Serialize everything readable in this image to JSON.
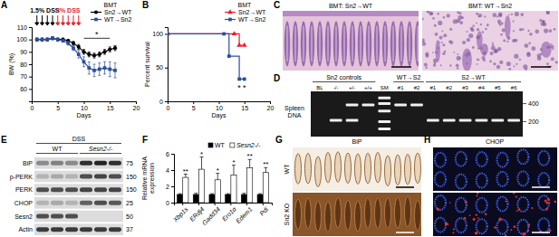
{
  "chart_data": [
    {
      "panel_label": "A",
      "type": "line",
      "x_label": "Days",
      "y_label": "BW (%)",
      "xlim": [
        0,
        20
      ],
      "xticks": [
        0,
        5,
        10,
        15,
        20
      ],
      "ylim": [
        50,
        110
      ],
      "yticks": [
        60,
        70,
        80,
        90,
        100,
        110
      ],
      "legend_title": "BMT",
      "legend": "upper right",
      "x": [
        1,
        2,
        3,
        4,
        5,
        6,
        7,
        8,
        9,
        10,
        11,
        12,
        13,
        14,
        15,
        16
      ],
      "series": [
        {
          "name": "Sn2→WT",
          "color": "#000000",
          "marker": "circle",
          "values": [
            100,
            100,
            100,
            101,
            100,
            100,
            99,
            97,
            94,
            90,
            88,
            87,
            88,
            90,
            92,
            93
          ],
          "errors": [
            1,
            1,
            1,
            1,
            1,
            1,
            1,
            1.5,
            2,
            2,
            2,
            2,
            2,
            2,
            2,
            2
          ]
        },
        {
          "name": "WT→Sn2",
          "color": "#2b4fa0",
          "marker": "square",
          "values": [
            100,
            100,
            100,
            101,
            100,
            99,
            97,
            93,
            88,
            82,
            77,
            75,
            76,
            77,
            76,
            75
          ],
          "errors": [
            1,
            1,
            1,
            1,
            1,
            1,
            1.5,
            2,
            3,
            4,
            5,
            5,
            5,
            5,
            6,
            6
          ]
        }
      ],
      "annotations": [
        {
          "text": "1.5% DSS",
          "x": [
            1,
            2,
            3,
            4
          ],
          "color": "#000000"
        },
        {
          "text": "3% DSS",
          "x": [
            5,
            6,
            7,
            8,
            9
          ],
          "color": "#e8202a"
        },
        {
          "text": "*",
          "x": [
            10,
            15
          ],
          "y": 101
        }
      ]
    },
    {
      "panel_label": "B",
      "type": "line",
      "x_label": "Days",
      "y_label": "Percent survival",
      "xlim": [
        0,
        20
      ],
      "xticks": [
        0,
        5,
        10,
        15,
        20
      ],
      "ylim": [
        0,
        110
      ],
      "yticks": [
        0,
        50,
        100
      ],
      "legend_title": "BMT",
      "legend": "upper right",
      "line_style": "step",
      "series": [
        {
          "name": "Sn2→WT",
          "color": "#e8202a",
          "marker": "triangle",
          "x": [
            0,
            13,
            14,
            15
          ],
          "values": [
            100,
            100,
            83,
            83
          ]
        },
        {
          "name": "WT→Sn2",
          "color": "#2b4fa0",
          "marker": "square",
          "x": [
            0,
            11,
            12,
            14,
            15
          ],
          "values": [
            100,
            100,
            67,
            33,
            33
          ]
        }
      ],
      "annotations": [
        {
          "text": "*",
          "x": 14,
          "y": 20
        },
        {
          "text": "*",
          "x": 15,
          "y": 20
        }
      ]
    },
    {
      "panel_label": "F",
      "type": "bar",
      "y_label": [
        "Relative mRNA",
        "expression"
      ],
      "categories": [
        "Xbp1s",
        "ERdj4",
        "Gadd34",
        "Ero1α",
        "Edem1",
        "Pdi"
      ],
      "ylim": [
        0,
        6
      ],
      "yticks": [
        0,
        2,
        4,
        6
      ],
      "legend": "upper right",
      "series": [
        {
          "name": "WT",
          "color": "#000000",
          "values": [
            1,
            1,
            1,
            1,
            1,
            1
          ],
          "errors": [
            0.1,
            0.15,
            0.1,
            0.1,
            0.15,
            0.1
          ]
        },
        {
          "name": "Sesn2-/-",
          "color": "#ffffff",
          "values": [
            3.1,
            4.1,
            2.8,
            3.4,
            4.3,
            3.7
          ],
          "errors": [
            0.4,
            1.5,
            0.8,
            1.2,
            1.0,
            0.6
          ]
        }
      ],
      "significance": [
        "**",
        "*",
        "*",
        "*",
        "**",
        "**"
      ]
    }
  ],
  "figure": {
    "C": {
      "panel_label": "C",
      "images": [
        "BMT: Sn2→WT",
        "BMT: WT→Sn2"
      ]
    },
    "D": {
      "panel_label": "D",
      "row_label": [
        "Spleen",
        "DNA"
      ],
      "markers": [
        400,
        200
      ],
      "ylim": [
        120,
        600
      ],
      "log": true,
      "groups": [
        {
          "label": "Sn2 controls",
          "lanes": [
            {
              "label": "BL",
              "bands": []
            },
            {
              "label": "-/-",
              "bands": [
                210
              ]
            },
            {
              "label": "+/-",
              "bands": [
                380,
                210
              ]
            },
            {
              "label": "+/+",
              "bands": [
                380
              ]
            }
          ]
        },
        {
          "lanes": [
            {
              "label": "SM",
              "bands": [
                500,
                400,
                300,
                200,
                150
              ]
            }
          ]
        },
        {
          "label": "WT→S2",
          "lanes": [
            {
              "label": "#1",
              "bands": [
                380
              ]
            },
            {
              "label": "#2",
              "bands": [
                380
              ]
            }
          ]
        },
        {
          "label": "S2→WT",
          "lanes": [
            {
              "label": "#1",
              "bands": [
                210
              ]
            },
            {
              "label": "#2",
              "bands": [
                210
              ]
            },
            {
              "label": "#3",
              "bands": [
                210
              ]
            },
            {
              "label": "#4",
              "bands": [
                210
              ]
            },
            {
              "label": "#5",
              "bands": [
                210
              ]
            },
            {
              "label": "#6",
              "bands": [
                210
              ]
            }
          ]
        }
      ]
    },
    "E": {
      "panel_label": "E",
      "treatment": "DSS",
      "groups": [
        {
          "label": "WT",
          "lanes": 3
        },
        {
          "label": "Sesn2-/-",
          "lanes": 3
        }
      ],
      "rows": [
        {
          "label": "BiP",
          "mw": 75,
          "values": [
            0.4,
            0.45,
            0.4,
            0.85,
            0.9,
            0.85
          ]
        },
        {
          "label": "p-PERK",
          "mw": 150,
          "values": [
            0.2,
            0.25,
            0.2,
            0.7,
            0.75,
            0.7
          ]
        },
        {
          "label": "PERK",
          "mw": 150,
          "values": [
            0.7,
            0.7,
            0.7,
            0.75,
            0.75,
            0.75
          ]
        },
        {
          "label": "CHOP",
          "mw": 25,
          "values": [
            0.2,
            0.25,
            0.2,
            0.6,
            0.7,
            0.65
          ]
        },
        {
          "label": "Sesn2",
          "mw": 50,
          "values": [
            0.7,
            0.7,
            0.7,
            0,
            0,
            0
          ]
        },
        {
          "label": "Actin",
          "mw": 37,
          "values": [
            0.8,
            0.8,
            0.8,
            0.8,
            0.8,
            0.8
          ]
        }
      ]
    },
    "G": {
      "panel_label": "G",
      "title": "BiP",
      "rows": [
        "WT",
        "Sn2 KO"
      ]
    },
    "H": {
      "panel_label": "H",
      "title": "CHOP",
      "image_count": 2
    }
  }
}
